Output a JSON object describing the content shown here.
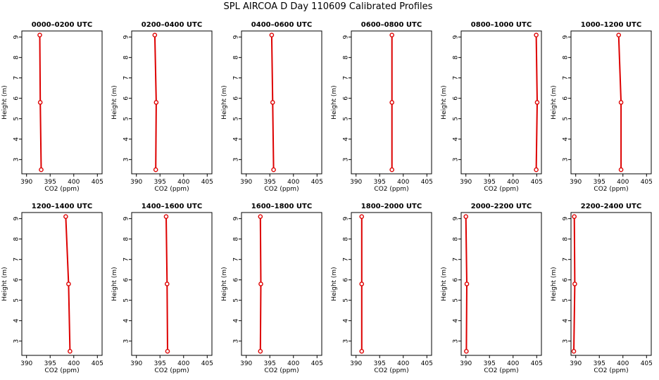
{
  "title": "SPL AIRCOA D  Day 110609  Calibrated Profiles",
  "chart_data": {
    "type": "line",
    "xlabel": "CO2 (ppm)",
    "ylabel": "Height (m)",
    "xlim": [
      389,
      406
    ],
    "ylim": [
      2.3,
      9.3
    ],
    "xticks": [
      390,
      395,
      400,
      405
    ],
    "yticks": [
      3,
      4,
      5,
      6,
      7,
      8,
      9
    ],
    "heights": [
      2.5,
      5.8,
      9.1
    ],
    "colors": {
      "series": "#dd0000",
      "axes": "#000000"
    },
    "panels": [
      {
        "title": "0000–0200 UTC",
        "values": [
          393.1,
          392.9,
          392.8
        ]
      },
      {
        "title": "0200–0400 UTC",
        "values": [
          394.1,
          394.2,
          393.9
        ]
      },
      {
        "title": "0400–0600 UTC",
        "values": [
          395.8,
          395.6,
          395.4
        ]
      },
      {
        "title": "0600–0800 UTC",
        "values": [
          397.6,
          397.6,
          397.6
        ]
      },
      {
        "title": "0800–1000 UTC",
        "values": [
          404.9,
          405.1,
          404.9
        ]
      },
      {
        "title": "1000–1200 UTC",
        "values": [
          399.6,
          399.6,
          399.1
        ]
      },
      {
        "title": "1200–1400 UTC",
        "values": [
          399.2,
          398.9,
          398.3
        ]
      },
      {
        "title": "1400–1600 UTC",
        "values": [
          396.6,
          396.5,
          396.3
        ]
      },
      {
        "title": "1600–1800 UTC",
        "values": [
          393.0,
          393.1,
          393.0
        ]
      },
      {
        "title": "1800–2000 UTC",
        "values": [
          391.2,
          391.2,
          391.2
        ]
      },
      {
        "title": "2000–2200 UTC",
        "values": [
          390.1,
          390.2,
          390.0
        ]
      },
      {
        "title": "2200–2400 UTC",
        "values": [
          389.6,
          389.8,
          389.7
        ]
      }
    ]
  }
}
